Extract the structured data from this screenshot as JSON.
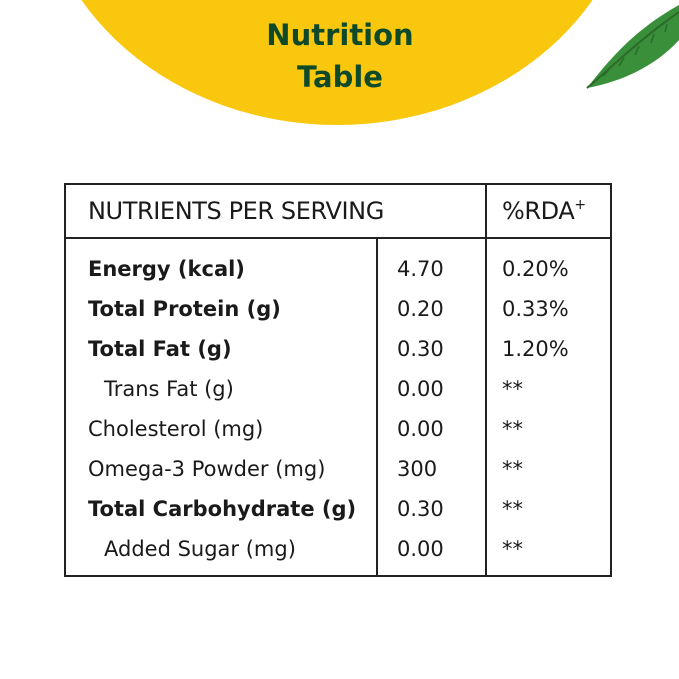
{
  "title": {
    "line1": "Nutrition",
    "line2": "Table"
  },
  "table": {
    "header_nutrients": "NUTRIENTS PER SERVING",
    "header_rda": "%RDA",
    "header_rda_sup": "+",
    "rows": [
      {
        "name": "Energy (kcal)",
        "value": "4.70",
        "rda": "0.20%"
      },
      {
        "name": "Total Protein (g)",
        "value": "0.20",
        "rda": "0.33%"
      },
      {
        "name": "Total Fat (g)",
        "value": "0.30",
        "rda": "1.20%"
      },
      {
        "name": "Trans Fat (g)",
        "value": "0.00",
        "rda": "**"
      },
      {
        "name": "Cholesterol (mg)",
        "value": "0.00",
        "rda": "**"
      },
      {
        "name": "Omega-3 Powder (mg)",
        "value": "300",
        "rda": "**"
      },
      {
        "name": "Total Carbohydrate (g)",
        "value": "0.30",
        "rda": "**"
      },
      {
        "name": "Added Sugar (mg)",
        "value": "0.00",
        "rda": "**"
      }
    ]
  },
  "colors": {
    "accent_yellow": "#f9c80e",
    "title_green": "#0e4a2a",
    "leaf_green": "#3a8f3a"
  },
  "icons": {
    "leaf": "leaf-icon"
  }
}
